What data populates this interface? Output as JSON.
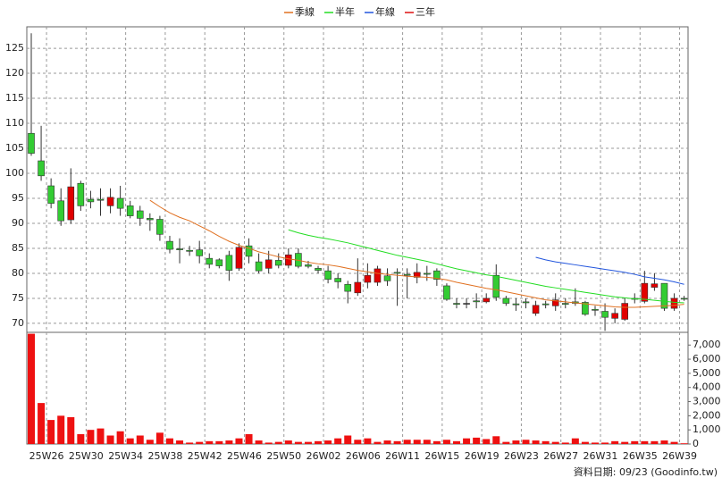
{
  "chart_data": [
    {
      "type": "candlestick",
      "categories": [
        null,
        "25W26",
        null,
        null,
        null,
        "25W30",
        null,
        null,
        null,
        "25W34",
        null,
        null,
        null,
        "25W38",
        null,
        null,
        null,
        "25W42",
        null,
        null,
        null,
        "25W46",
        null,
        null,
        null,
        "25W50",
        null,
        null,
        null,
        "26W02",
        null,
        null,
        null,
        "26W06",
        null,
        null,
        null,
        "26W11",
        null,
        null,
        null,
        "26W15",
        null,
        null,
        null,
        "26W19",
        null,
        null,
        null,
        "26W23",
        null,
        null,
        null,
        "26W27",
        null,
        null,
        null,
        "26W31",
        null,
        null,
        null,
        "26W35",
        null,
        null,
        null,
        "26W39",
        null
      ],
      "open": [
        108,
        102.5,
        97.5,
        94.5,
        90.7,
        98,
        94.8,
        94.8,
        93.5,
        95,
        93.5,
        92.5,
        91,
        90.8,
        86.4,
        84.9,
        84.6,
        84.7,
        83,
        82.7,
        83.6,
        81,
        85.5,
        82.3,
        81,
        82.6,
        81.6,
        84,
        81.7,
        81,
        80.5,
        79,
        77.8,
        76.1,
        78.2,
        78.2,
        79.5,
        80.2,
        79.8,
        79.2,
        80,
        80.5,
        77.5,
        74,
        74,
        74.5,
        74.3,
        79.6,
        75,
        73.9,
        74.3,
        72,
        73.9,
        73.5,
        74,
        74.3,
        74.2,
        72.8,
        72.4,
        71,
        70.8,
        75,
        74.4,
        77.2,
        78,
        73,
        75
      ],
      "high": [
        128,
        109.5,
        99,
        97,
        101,
        98.5,
        96.5,
        97,
        97,
        97.5,
        94.5,
        93.5,
        92,
        91.5,
        87.5,
        87,
        85.5,
        86.5,
        84,
        83,
        84.5,
        86,
        87,
        84,
        84.5,
        84,
        85,
        85,
        82.5,
        81.5,
        81.5,
        80,
        78.5,
        83,
        82,
        81.5,
        81,
        81,
        81,
        82,
        81.5,
        81,
        78,
        75,
        75,
        76,
        76,
        81.8,
        75.5,
        75,
        75,
        74.5,
        74.5,
        76,
        75,
        77,
        74.5,
        73.5,
        74,
        73,
        75,
        76,
        80.5,
        80,
        78,
        76,
        75.5
      ],
      "low": [
        103.5,
        98.5,
        93,
        89.5,
        89.9,
        92.5,
        93,
        91.5,
        92,
        91.5,
        91,
        89.5,
        88.5,
        86.5,
        84,
        82,
        83.5,
        82,
        81,
        81,
        78.5,
        80.5,
        82,
        80,
        80,
        81,
        81,
        81,
        81,
        80,
        78,
        77,
        74,
        75.5,
        77,
        77.5,
        77.5,
        73.5,
        75,
        78,
        78.5,
        77.5,
        74.5,
        73,
        73,
        73,
        74,
        74.5,
        73.5,
        72.5,
        73,
        71.5,
        73,
        72.5,
        73,
        73.5,
        71.5,
        71.5,
        68.5,
        70,
        70.5,
        74,
        74,
        76.5,
        72.5,
        72.5,
        74.5
      ],
      "close": [
        104,
        99.5,
        94,
        90.5,
        97.3,
        93.5,
        94.3,
        94.6,
        95.2,
        93,
        91.5,
        91,
        90.7,
        87.8,
        84.8,
        84.7,
        84.4,
        83.5,
        81.8,
        81.5,
        80.6,
        85.2,
        83.4,
        80.5,
        82.7,
        81.6,
        83.7,
        81.4,
        81.4,
        80.6,
        78.8,
        78.3,
        76.4,
        78.2,
        79.6,
        80.9,
        78.5,
        80,
        79.6,
        80.2,
        79.8,
        78.8,
        74.8,
        73.8,
        74,
        74.3,
        75,
        75.2,
        74,
        73.7,
        74.1,
        73.6,
        73.7,
        74.7,
        73.8,
        74,
        71.8,
        72.6,
        71.2,
        72,
        74,
        74.8,
        78,
        77.9,
        73,
        75,
        74.9
      ],
      "up_color": "#e00000",
      "down_color": "#33cc33",
      "series": [
        {
          "name": "季線",
          "color": "#e07020",
          "values": [
            null,
            null,
            null,
            null,
            null,
            null,
            null,
            null,
            null,
            null,
            null,
            null,
            94.6,
            93.3,
            92.1,
            91.2,
            90.5,
            89.5,
            88.5,
            87.4,
            86.4,
            85.6,
            85,
            84.3,
            83.8,
            83.3,
            82.9,
            82.6,
            82.2,
            81.9,
            81.7,
            81.4,
            81,
            80.6,
            80.3,
            80,
            79.8,
            79.6,
            79.4,
            79.3,
            79.2,
            79,
            78.7,
            78.2,
            77.8,
            77.4,
            77,
            76.7,
            76.3,
            75.9,
            75.5,
            75.1,
            74.7,
            74.5,
            74.3,
            74.1,
            73.9,
            73.7,
            73.5,
            73.3,
            73.2,
            73.2,
            73.3,
            73.4,
            73.5,
            73.6,
            73.8
          ]
        },
        {
          "name": "半年",
          "color": "#22dd22",
          "values": [
            null,
            null,
            null,
            null,
            null,
            null,
            null,
            null,
            null,
            null,
            null,
            null,
            null,
            null,
            null,
            null,
            null,
            null,
            null,
            null,
            null,
            null,
            null,
            null,
            null,
            null,
            88.7,
            88.1,
            87.6,
            87.2,
            86.9,
            86.5,
            86.1,
            85.6,
            85.1,
            84.6,
            84.1,
            83.6,
            83.2,
            82.8,
            82.4,
            81.9,
            81.4,
            80.9,
            80.5,
            80.1,
            79.7,
            79.4,
            79,
            78.6,
            78.2,
            77.8,
            77.4,
            77.1,
            76.8,
            76.5,
            76.2,
            75.9,
            75.6,
            75.3,
            75.1,
            74.9,
            74.8,
            74.6,
            74.4,
            74.2,
            74.1
          ]
        },
        {
          "name": "年線",
          "color": "#2255dd",
          "values": [
            null,
            null,
            null,
            null,
            null,
            null,
            null,
            null,
            null,
            null,
            null,
            null,
            null,
            null,
            null,
            null,
            null,
            null,
            null,
            null,
            null,
            null,
            null,
            null,
            null,
            null,
            null,
            null,
            null,
            null,
            null,
            null,
            null,
            null,
            null,
            null,
            null,
            null,
            null,
            null,
            null,
            null,
            null,
            null,
            null,
            null,
            null,
            null,
            null,
            null,
            null,
            83.2,
            82.7,
            82.3,
            82,
            81.7,
            81.4,
            81.1,
            80.8,
            80.5,
            80.2,
            79.8,
            79.3,
            79,
            78.7,
            78.3,
            77.8
          ]
        },
        {
          "name": "三年",
          "color": "#dd1111",
          "values": [
            null,
            null,
            null,
            null,
            null,
            null,
            null,
            null,
            null,
            null,
            null,
            null,
            null,
            null,
            null,
            null,
            null,
            null,
            null,
            null,
            null,
            null,
            null,
            null,
            null,
            null,
            null,
            null,
            null,
            null,
            null,
            null,
            null,
            null,
            null,
            null,
            null,
            null,
            null,
            null,
            null,
            null,
            null,
            null,
            null,
            null,
            null,
            null,
            null,
            null,
            null,
            null,
            null,
            null,
            null,
            null,
            null,
            null,
            null,
            null,
            null,
            null,
            null,
            null,
            null,
            null,
            null
          ]
        }
      ],
      "ylim": [
        68.2,
        129.3
      ],
      "yticks": [
        70,
        75,
        80,
        85,
        90,
        95,
        100,
        105,
        110,
        115,
        120,
        125
      ],
      "grid": true
    },
    {
      "type": "bar",
      "color": "#ee1111",
      "values": [
        7800,
        2900,
        1700,
        2000,
        1900,
        700,
        1000,
        1100,
        600,
        900,
        400,
        600,
        300,
        800,
        400,
        250,
        100,
        150,
        200,
        200,
        250,
        400,
        700,
        250,
        100,
        150,
        250,
        150,
        150,
        200,
        250,
        400,
        600,
        300,
        400,
        150,
        250,
        200,
        300,
        300,
        300,
        200,
        300,
        200,
        400,
        450,
        350,
        550,
        150,
        250,
        300,
        250,
        200,
        150,
        100,
        400,
        150,
        100,
        100,
        200,
        150,
        200,
        200,
        200,
        250,
        150,
        50
      ],
      "ylim": [
        0,
        7900
      ],
      "yticks": [
        0,
        {
          "value": 1000,
          "label": "1,000"
        },
        {
          "value": 2000,
          "label": "2,000"
        },
        {
          "value": 3000,
          "label": "3,000"
        },
        {
          "value": 4000,
          "label": "4,000"
        },
        {
          "value": 5000,
          "label": "5,000"
        },
        {
          "value": 6000,
          "label": "6,000"
        },
        {
          "value": 7000,
          "label": "7,000"
        }
      ]
    }
  ],
  "source": "資料日期: 09/23 (Goodinfo.tw)"
}
